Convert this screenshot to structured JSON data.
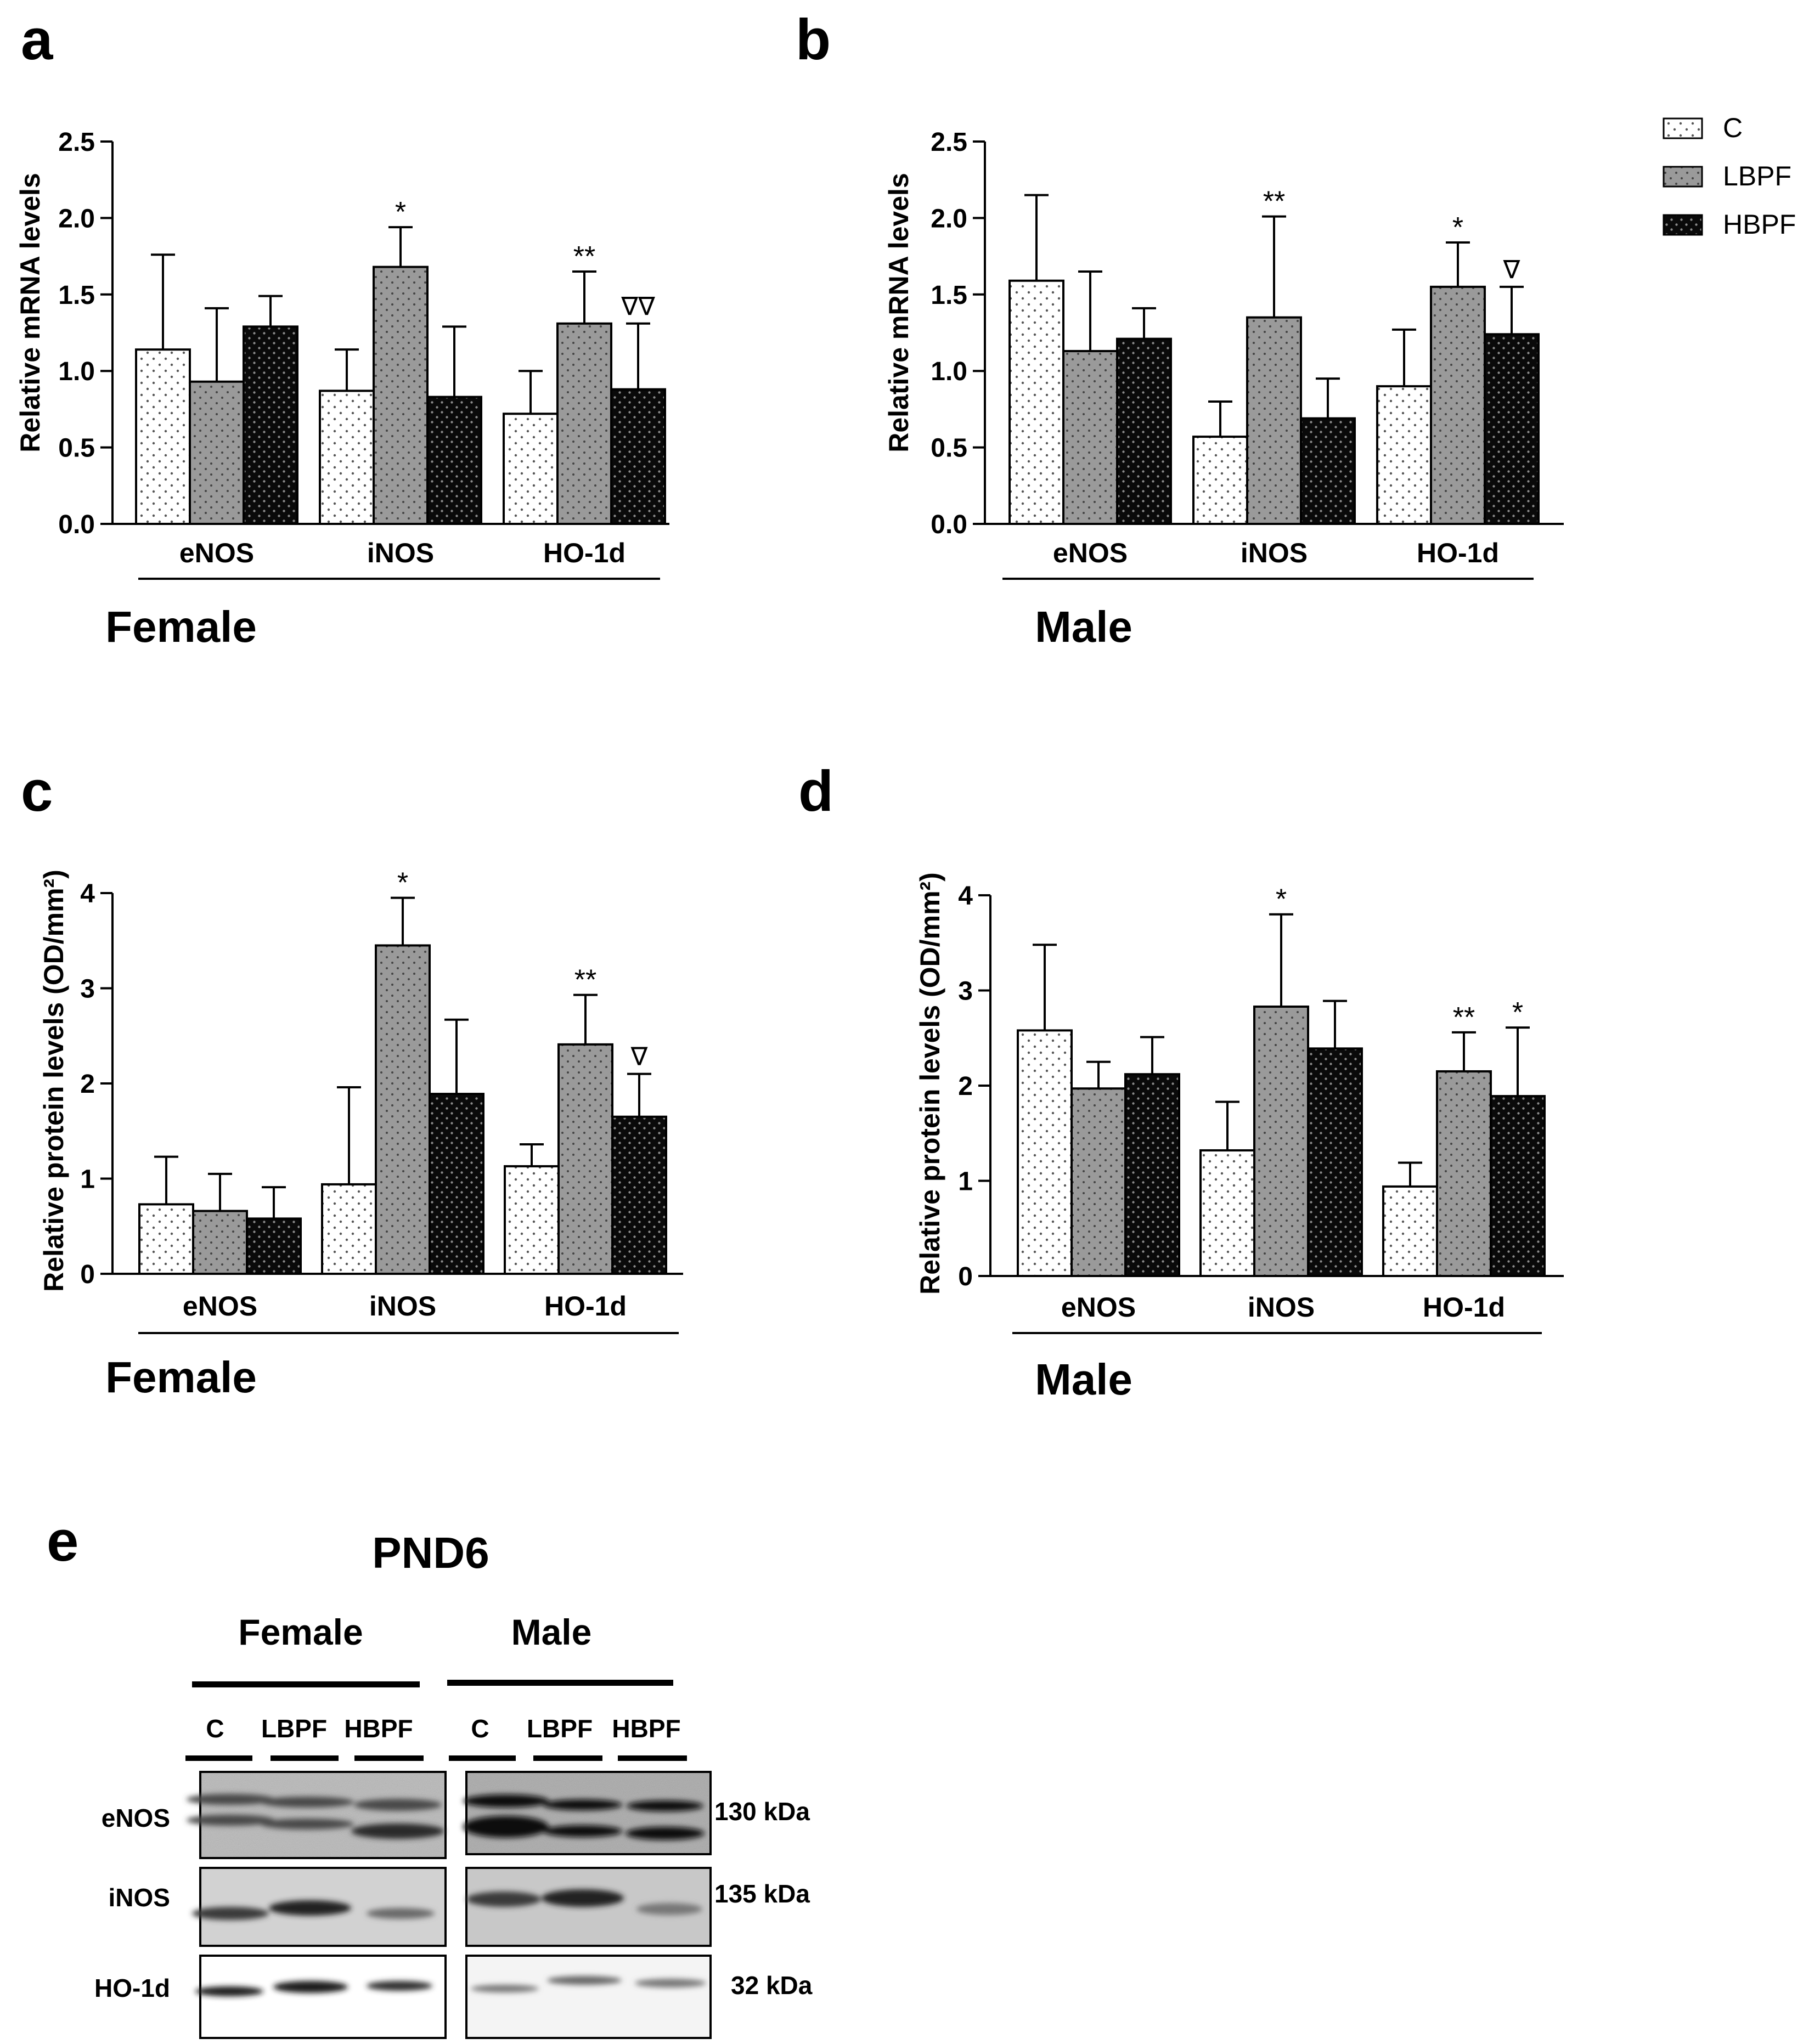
{
  "legend": {
    "entries": [
      {
        "label": "C",
        "pattern": "sparse"
      },
      {
        "label": "LBPF",
        "pattern": "gray"
      },
      {
        "label": "HBPF",
        "pattern": "black"
      }
    ]
  },
  "chart_data": [
    {
      "type": "bar",
      "panel_letter": "a",
      "title": "",
      "ylabel": "Relative mRNA levels",
      "xlabel": "Female",
      "ylim": [
        0,
        2.5
      ],
      "yticks": [
        "0.0",
        "0.5",
        "1.0",
        "1.5",
        "2.0",
        "2.5"
      ],
      "categories": [
        "eNOS",
        "iNOS",
        "HO-1d"
      ],
      "series": [
        {
          "name": "C",
          "values": [
            1.14,
            0.87,
            0.72
          ],
          "errors": [
            0.62,
            0.27,
            0.28
          ],
          "annotations": [
            "",
            "",
            ""
          ]
        },
        {
          "name": "LBPF",
          "values": [
            0.93,
            1.68,
            1.31
          ],
          "errors": [
            0.48,
            0.26,
            0.34
          ],
          "annotations": [
            "",
            "*",
            "**"
          ]
        },
        {
          "name": "HBPF",
          "values": [
            1.29,
            0.83,
            0.88
          ],
          "errors": [
            0.2,
            0.46,
            0.43
          ],
          "annotations": [
            "",
            "",
            "∇∇"
          ]
        }
      ]
    },
    {
      "type": "bar",
      "panel_letter": "b",
      "title": "",
      "ylabel": "Relative mRNA levels",
      "xlabel": "Male",
      "ylim": [
        0,
        2.5
      ],
      "yticks": [
        "0.0",
        "0.5",
        "1.0",
        "1.5",
        "2.0",
        "2.5"
      ],
      "categories": [
        "eNOS",
        "iNOS",
        "HO-1d"
      ],
      "series": [
        {
          "name": "C",
          "values": [
            1.59,
            0.57,
            0.9
          ],
          "errors": [
            0.56,
            0.23,
            0.37
          ],
          "annotations": [
            "",
            "",
            ""
          ]
        },
        {
          "name": "LBPF",
          "values": [
            1.13,
            1.35,
            1.55
          ],
          "errors": [
            0.52,
            0.66,
            0.29
          ],
          "annotations": [
            "",
            "**",
            "*"
          ]
        },
        {
          "name": "HBPF",
          "values": [
            1.21,
            0.69,
            1.24
          ],
          "errors": [
            0.2,
            0.26,
            0.31
          ],
          "annotations": [
            "",
            "",
            "∇"
          ]
        }
      ]
    },
    {
      "type": "bar",
      "panel_letter": "c",
      "title": "",
      "ylabel": "Relative protein levels (OD/mm²)",
      "xlabel": "Female",
      "ylim": [
        0,
        4
      ],
      "yticks": [
        "0",
        "1",
        "2",
        "3",
        "4"
      ],
      "categories": [
        "eNOS",
        "iNOS",
        "HO-1d"
      ],
      "series": [
        {
          "name": "C",
          "values": [
            0.73,
            0.94,
            1.13
          ],
          "errors": [
            0.5,
            1.02,
            0.23
          ],
          "annotations": [
            "",
            "",
            ""
          ]
        },
        {
          "name": "LBPF",
          "values": [
            0.66,
            3.45,
            2.41
          ],
          "errors": [
            0.39,
            0.5,
            0.52
          ],
          "annotations": [
            "",
            "*",
            "**"
          ]
        },
        {
          "name": "HBPF",
          "values": [
            0.58,
            1.89,
            1.65
          ],
          "errors": [
            0.33,
            0.78,
            0.45
          ],
          "annotations": [
            "",
            "",
            "∇"
          ]
        }
      ]
    },
    {
      "type": "bar",
      "panel_letter": "d",
      "title": "",
      "ylabel": "Relative protein levels (OD/mm²)",
      "xlabel": "Male",
      "ylim": [
        0,
        4
      ],
      "yticks": [
        "0",
        "1",
        "2",
        "3",
        "4"
      ],
      "categories": [
        "eNOS",
        "iNOS",
        "HO-1d"
      ],
      "series": [
        {
          "name": "C",
          "values": [
            2.58,
            1.32,
            0.94
          ],
          "errors": [
            0.9,
            0.51,
            0.25
          ],
          "annotations": [
            "",
            "",
            ""
          ]
        },
        {
          "name": "LBPF",
          "values": [
            1.97,
            2.83,
            2.15
          ],
          "errors": [
            0.28,
            0.97,
            0.41
          ],
          "annotations": [
            "",
            "*",
            "**"
          ]
        },
        {
          "name": "HBPF",
          "values": [
            2.12,
            2.39,
            1.89
          ],
          "errors": [
            0.39,
            0.5,
            0.72
          ],
          "annotations": [
            "",
            "",
            "*"
          ]
        }
      ]
    }
  ],
  "blot": {
    "panel_letter": "e",
    "title": "PND6",
    "groups": [
      {
        "label": "Female",
        "lanes": [
          "C",
          "LBPF",
          "HBPF"
        ]
      },
      {
        "label": "Male",
        "lanes": [
          "C",
          "LBPF",
          "HBPF"
        ]
      }
    ],
    "rows": [
      {
        "protein": "eNOS",
        "size": "130 kDa"
      },
      {
        "protein": "iNOS",
        "size": "135 kDa"
      },
      {
        "protein": "HO-1d",
        "size": "32 kDa"
      }
    ]
  }
}
